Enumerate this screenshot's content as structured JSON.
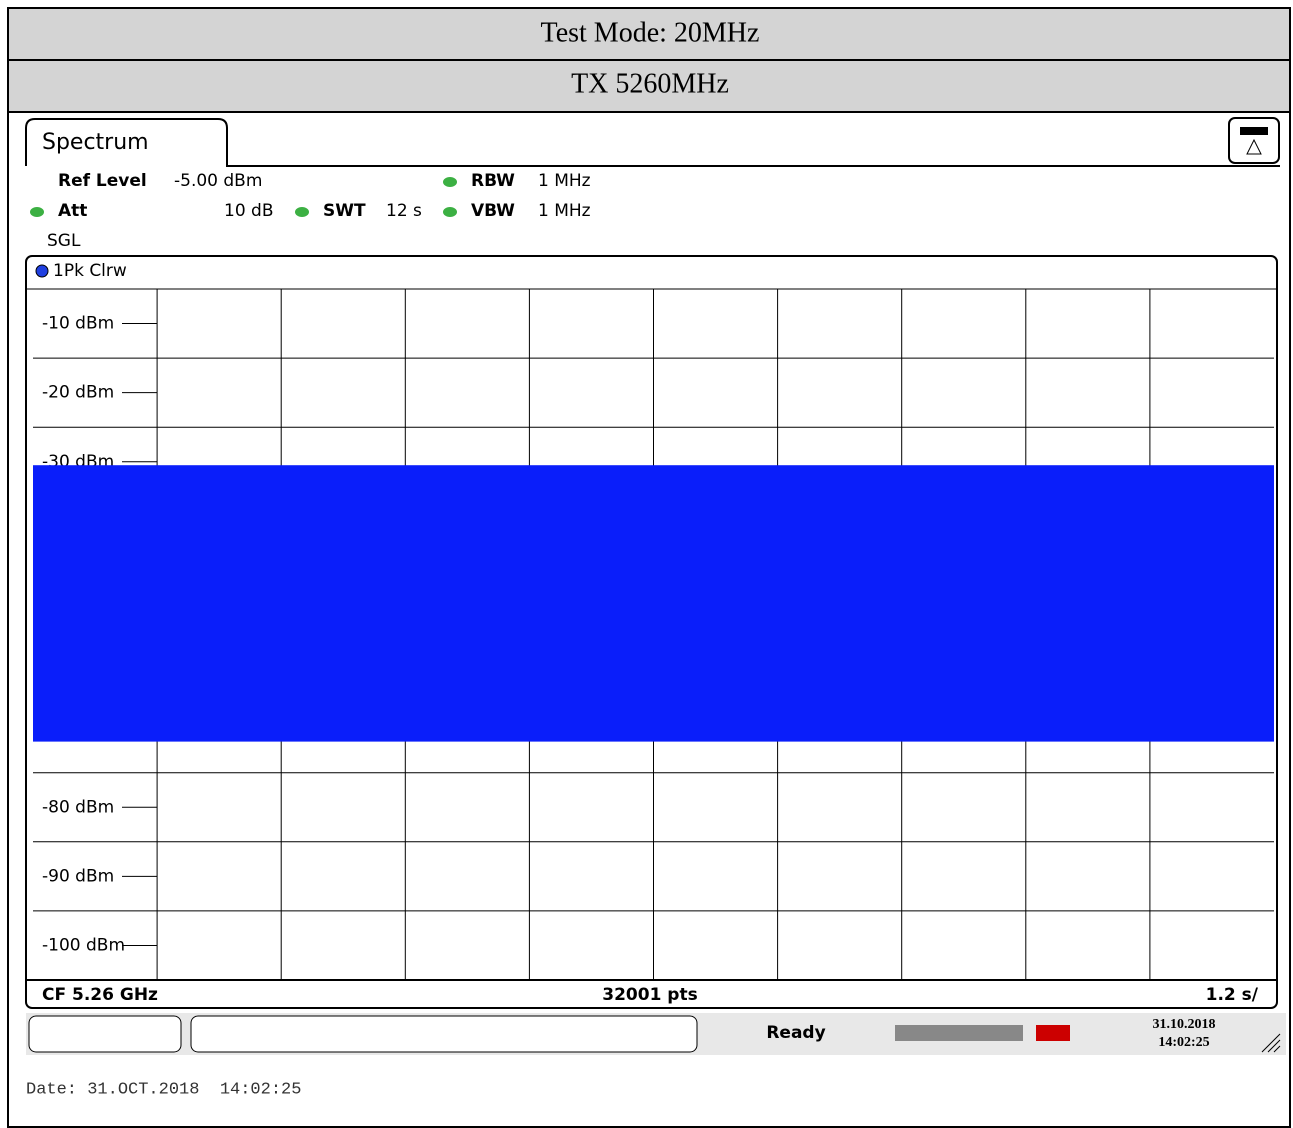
{
  "header": {
    "rows": [
      "Test Mode: 20MHz",
      "TX 5260MHz"
    ]
  },
  "panel": {
    "tab": "Spectrum",
    "settings": {
      "ref_level_label": "Ref Level",
      "ref_level": "-5.00 dBm",
      "att_label": "Att",
      "att": "10 dB",
      "swt_label": "SWT",
      "swt": "12 s",
      "rbw_label": "RBW",
      "rbw": "1 MHz",
      "vbw_label": "VBW",
      "vbw": "1 MHz",
      "mode": "SGL"
    },
    "trace_label": "1Pk Clrw",
    "chart_data": {
      "type": "band",
      "ylim": [
        -105,
        -5
      ],
      "yticks": [
        {
          "value": -10,
          "label": "-10 dBm"
        },
        {
          "value": -20,
          "label": "-20 dBm"
        },
        {
          "value": -30,
          "label": "-30 dBm"
        },
        {
          "value": -80,
          "label": "-80 dBm"
        },
        {
          "value": -90,
          "label": "-90 dBm"
        },
        {
          "value": -100,
          "label": "-100 dBm"
        }
      ],
      "color": "#0a1efa",
      "trace": {
        "max_level": -30.5,
        "min_level": -70.5
      },
      "grid": true
    },
    "footer": {
      "center_freq": "CF 5.26 GHz",
      "points": "32001 pts",
      "sweep": "1.2 s/"
    },
    "status": {
      "state": "Ready",
      "date": "31.10.2018",
      "time": "14:02:25"
    }
  },
  "caption": "Date: 31.OCT.2018  14:02:25"
}
